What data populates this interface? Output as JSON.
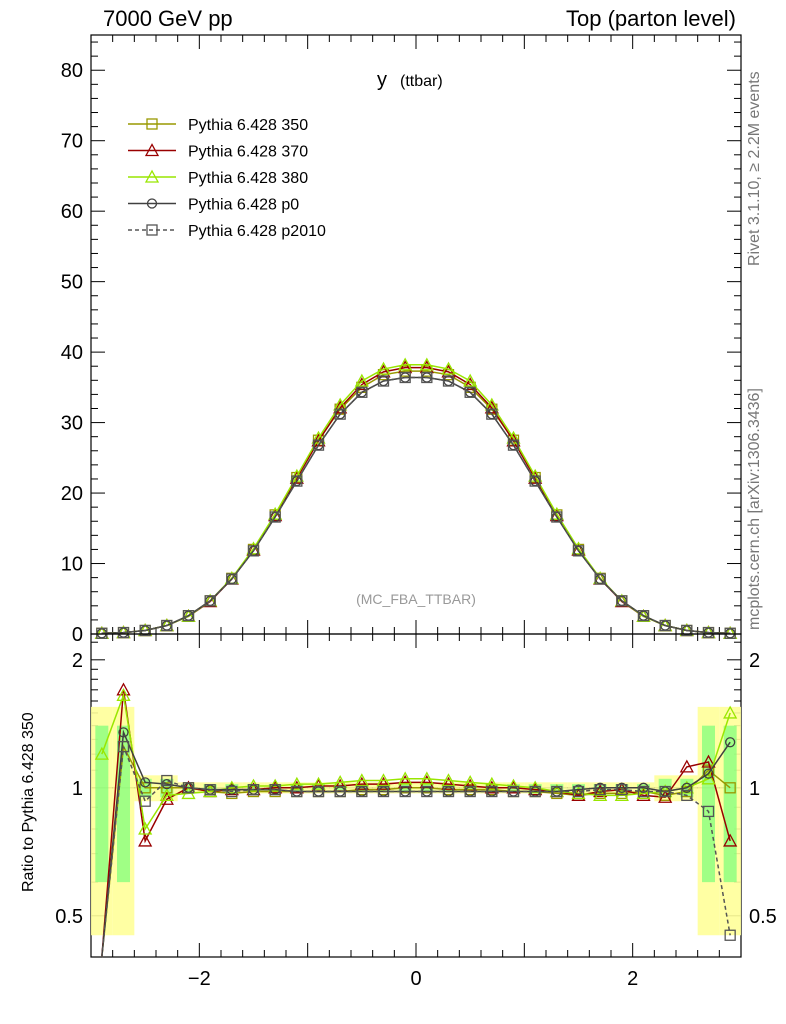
{
  "header": {
    "left": "7000 GeV pp",
    "right": "Top (parton level)"
  },
  "side": {
    "rivet": "Rivet 3.1.10, ≥ 2.2M events",
    "mcplots": "mcplots.cern.ch [arXiv:1306.3436]"
  },
  "plot": {
    "title_main": "y",
    "title_sub": "(ttbar)",
    "watermark": "(MC_FBA_TTBAR)",
    "ratio_ylabel": "Ratio to Pythia 6.428 350"
  },
  "chart_data": {
    "type": "line",
    "title": "y (ttbar)",
    "xlabel": "",
    "ylabel": "",
    "xlim": [
      -3.0,
      3.0
    ],
    "ylim": [
      0,
      85
    ],
    "ratio_ylim": [
      0.4,
      2.3
    ],
    "ratio_ylabel": "Ratio to Pythia 6.428 350",
    "x_ticks": [
      "−2",
      "0",
      "2"
    ],
    "y_ticks": [
      "0",
      "10",
      "20",
      "30",
      "40",
      "50",
      "60",
      "70",
      "80"
    ],
    "ratio_ticks": [
      "0.5",
      "1",
      "2"
    ],
    "grid": false,
    "legend_position": "top-left",
    "x": [
      -2.9,
      -2.7,
      -2.5,
      -2.3,
      -2.1,
      -1.9,
      -1.7,
      -1.5,
      -1.3,
      -1.1,
      -0.9,
      -0.7,
      -0.5,
      -0.3,
      -0.1,
      0.1,
      0.3,
      0.5,
      0.7,
      0.9,
      1.1,
      1.3,
      1.5,
      1.7,
      1.9,
      2.1,
      2.3,
      2.5,
      2.7,
      2.9
    ],
    "series": [
      {
        "name": "Pythia 6.428 350",
        "color": "#999900",
        "marker": "open-square",
        "dash": "solid",
        "values": [
          0.1,
          0.2,
          0.5,
          1.2,
          2.6,
          4.7,
          7.9,
          12.0,
          16.9,
          22.2,
          27.5,
          31.9,
          35.0,
          36.8,
          37.3,
          37.3,
          36.8,
          35.0,
          31.9,
          27.5,
          22.2,
          16.9,
          12.0,
          7.9,
          4.7,
          2.6,
          1.2,
          0.5,
          0.2,
          0.1
        ],
        "ratio": [
          0.35,
          1.25,
          1.0,
          1.0,
          1.0,
          0.98,
          0.97,
          0.98,
          0.98,
          0.98,
          0.98,
          0.98,
          0.99,
          0.99,
          1.0,
          1.0,
          0.99,
          0.99,
          0.99,
          0.98,
          0.98,
          0.97,
          0.96,
          0.97,
          0.97,
          0.98,
          0.96,
          0.98,
          1.1,
          1.0
        ]
      },
      {
        "name": "Pythia 6.428 370",
        "color": "#990000",
        "marker": "open-triangle",
        "dash": "solid",
        "values": [
          0.1,
          0.2,
          0.5,
          1.2,
          2.5,
          4.6,
          7.8,
          11.9,
          16.8,
          22.1,
          27.4,
          32.1,
          35.4,
          37.2,
          37.8,
          37.8,
          37.2,
          35.4,
          32.1,
          27.4,
          22.1,
          16.8,
          11.9,
          7.8,
          4.6,
          2.5,
          1.2,
          0.5,
          0.2,
          0.1
        ],
        "ratio": [
          0.35,
          1.7,
          0.75,
          0.94,
          1.0,
          0.98,
          0.99,
          0.99,
          1.0,
          1.0,
          1.01,
          1.01,
          1.02,
          1.02,
          1.03,
          1.03,
          1.02,
          1.01,
          1.0,
          1.0,
          0.99,
          0.98,
          0.96,
          0.98,
          0.99,
          0.96,
          0.95,
          1.12,
          1.15,
          0.75
        ]
      },
      {
        "name": "Pythia 6.428 380",
        "color": "#99e600",
        "marker": "open-triangle",
        "dash": "solid",
        "values": [
          0.1,
          0.2,
          0.5,
          1.2,
          2.5,
          4.7,
          7.9,
          12.1,
          17.0,
          22.4,
          27.8,
          32.5,
          35.9,
          37.6,
          38.2,
          38.2,
          37.6,
          35.9,
          32.5,
          27.8,
          22.4,
          17.0,
          12.1,
          7.9,
          4.7,
          2.5,
          1.2,
          0.5,
          0.2,
          0.1
        ],
        "ratio": [
          1.2,
          1.65,
          0.8,
          0.96,
          0.97,
          0.98,
          1.0,
          1.01,
          1.01,
          1.02,
          1.02,
          1.03,
          1.04,
          1.04,
          1.05,
          1.05,
          1.04,
          1.03,
          1.02,
          1.01,
          1.0,
          0.98,
          0.97,
          0.96,
          0.96,
          0.97,
          0.98,
          1.0,
          1.05,
          1.5
        ]
      },
      {
        "name": "Pythia 6.428 p0",
        "color": "#404040",
        "marker": "open-circle",
        "dash": "solid",
        "values": [
          0.1,
          0.2,
          0.5,
          1.2,
          2.6,
          4.7,
          7.8,
          11.8,
          16.6,
          21.7,
          26.8,
          31.2,
          34.3,
          35.9,
          36.4,
          36.4,
          35.9,
          34.3,
          31.2,
          26.8,
          21.7,
          16.6,
          11.8,
          7.8,
          4.7,
          2.6,
          1.2,
          0.5,
          0.2,
          0.1
        ],
        "ratio": [
          0.35,
          1.35,
          1.03,
          1.02,
          1.0,
          0.99,
          0.99,
          0.99,
          0.99,
          0.98,
          0.98,
          0.98,
          0.98,
          0.98,
          0.98,
          0.98,
          0.98,
          0.98,
          0.98,
          0.98,
          0.98,
          0.98,
          0.99,
          1.0,
          1.0,
          1.0,
          0.98,
          1.0,
          1.08,
          1.28
        ]
      },
      {
        "name": "Pythia 6.428 p2010",
        "color": "#555555",
        "marker": "open-square",
        "dash": "dashed",
        "values": [
          0.1,
          0.2,
          0.5,
          1.2,
          2.6,
          4.7,
          7.8,
          11.8,
          16.6,
          21.7,
          26.8,
          31.2,
          34.3,
          35.9,
          36.4,
          36.4,
          35.9,
          34.3,
          31.2,
          26.8,
          21.7,
          16.6,
          11.8,
          7.8,
          4.7,
          2.6,
          1.2,
          0.5,
          0.2,
          0.1
        ],
        "ratio": [
          0.35,
          1.25,
          0.93,
          1.04,
          1.0,
          0.99,
          0.98,
          0.99,
          0.99,
          0.98,
          0.98,
          0.98,
          0.98,
          0.98,
          0.98,
          0.98,
          0.98,
          0.98,
          0.98,
          0.98,
          0.98,
          0.98,
          0.98,
          0.99,
          0.99,
          0.98,
          0.98,
          0.96,
          0.88,
          0.45
        ]
      }
    ]
  }
}
